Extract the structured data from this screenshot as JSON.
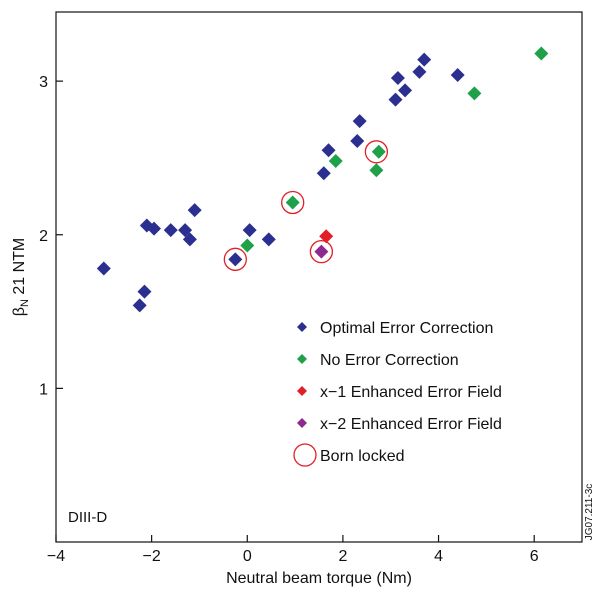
{
  "chart_data": {
    "type": "scatter",
    "title": "",
    "xlabel": "Neutral beam torque (Nm)",
    "ylabel_main": "β",
    "ylabel_sub": "N",
    "ylabel_rest": " 21 NTM",
    "xlim": [
      -4,
      7
    ],
    "ylim": [
      0,
      3.45
    ],
    "x_ticks": [
      {
        "v": -4,
        "t": "−4"
      },
      {
        "v": -2,
        "t": "−2"
      },
      {
        "v": 0,
        "t": "0"
      },
      {
        "v": 2,
        "t": "2"
      },
      {
        "v": 4,
        "t": "4"
      },
      {
        "v": 6,
        "t": "6"
      }
    ],
    "y_ticks": [
      {
        "v": 1,
        "t": "1"
      },
      {
        "v": 2,
        "t": "2"
      },
      {
        "v": 3,
        "t": "3"
      }
    ],
    "grid": false,
    "legend_position": "bottom-right",
    "series": [
      {
        "name": "Optimal Error Correction",
        "color": "#2b2f8f",
        "marker": "diamond",
        "points": [
          [
            -3.0,
            1.78
          ],
          [
            -2.25,
            1.54
          ],
          [
            -2.15,
            1.63
          ],
          [
            -2.1,
            2.06
          ],
          [
            -1.95,
            2.04
          ],
          [
            -1.6,
            2.03
          ],
          [
            -1.3,
            2.03
          ],
          [
            -1.2,
            1.97
          ],
          [
            -1.1,
            2.16
          ],
          [
            -0.25,
            1.84
          ],
          [
            0.05,
            2.03
          ],
          [
            0.45,
            1.97
          ],
          [
            1.6,
            2.4
          ],
          [
            1.7,
            2.55
          ],
          [
            2.3,
            2.61
          ],
          [
            2.35,
            2.74
          ],
          [
            3.1,
            2.88
          ],
          [
            3.15,
            3.02
          ],
          [
            3.3,
            2.94
          ],
          [
            3.6,
            3.06
          ],
          [
            3.7,
            3.14
          ],
          [
            4.4,
            3.04
          ]
        ]
      },
      {
        "name": "No Error Correction",
        "color": "#1fa14a",
        "marker": "diamond",
        "points": [
          [
            0.0,
            1.93
          ],
          [
            0.95,
            2.21
          ],
          [
            1.85,
            2.48
          ],
          [
            2.7,
            2.42
          ],
          [
            2.75,
            2.54
          ],
          [
            4.75,
            2.92
          ],
          [
            6.15,
            3.18
          ]
        ]
      },
      {
        "name": "x−1 Enhanced Error Field",
        "color": "#e01f26",
        "marker": "diamond",
        "points": [
          [
            1.65,
            1.99
          ]
        ]
      },
      {
        "name": "x−2 Enhanced Error Field",
        "color": "#8e2a8f",
        "marker": "diamond",
        "points": [
          [
            1.55,
            1.89
          ]
        ]
      }
    ],
    "born_locked": {
      "name": "Born locked",
      "color": "#e01f26",
      "marker": "open-circle",
      "points": [
        [
          -0.25,
          1.84
        ],
        [
          0.95,
          2.21
        ],
        [
          1.55,
          1.89
        ],
        [
          2.7,
          2.54
        ]
      ]
    },
    "annotations": {
      "device": "DIII-D",
      "side_id": "JG07.211-3c"
    }
  }
}
